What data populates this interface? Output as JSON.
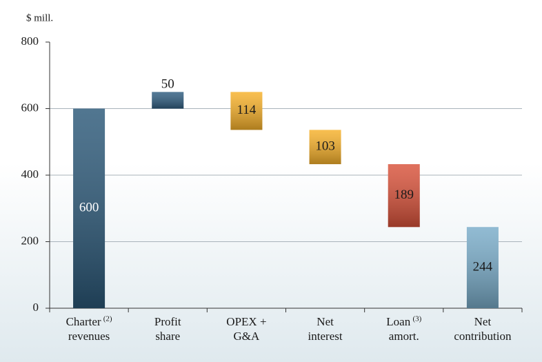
{
  "chart_data": {
    "type": "waterfall",
    "y_label": "$ mill.",
    "categories": [
      [
        "Charter",
        "revenues"
      ],
      [
        "Profit",
        "share"
      ],
      [
        "OPEX +",
        "G&A"
      ],
      [
        "Net",
        "interest"
      ],
      [
        "Loan",
        "amort."
      ],
      [
        "Net",
        "contribution"
      ]
    ],
    "footnotes": [
      "(2)",
      null,
      null,
      null,
      "(3)",
      null
    ],
    "measure": [
      "absolute",
      "relative",
      "relative",
      "relative",
      "relative",
      "total"
    ],
    "values": [
      600,
      50,
      -114,
      -103,
      -189,
      244
    ],
    "value_labels": [
      "600",
      "50",
      "114",
      "103",
      "189",
      "244"
    ],
    "colors": [
      "#2b5878",
      "#2f5d80",
      "#f7b12a",
      "#f7b12a",
      "#d9523a",
      "#79acc9"
    ],
    "label_colors": [
      "#ffffff",
      "#1a1a1a",
      "#1a1a1a",
      "#1a1a1a",
      "#1a1a1a",
      "#1a1a1a"
    ],
    "ylim": [
      0,
      800
    ],
    "yticks": [
      0,
      200,
      400,
      600,
      800
    ],
    "grid": true
  }
}
